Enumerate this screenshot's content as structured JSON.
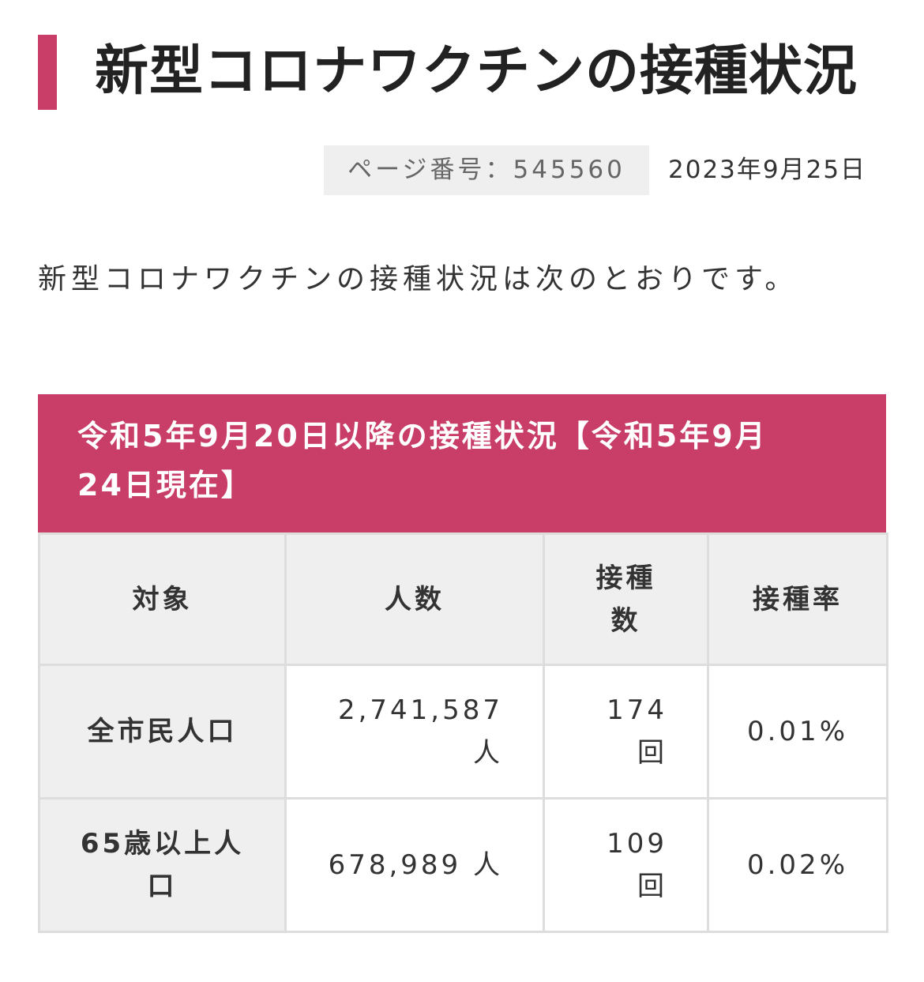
{
  "header": {
    "title": "新型コロナワクチンの接種状況",
    "page_number": "ページ番号：545560",
    "date": "2023年9月25日"
  },
  "intro": "新型コロナワクチンの接種状況は次のとおりです。",
  "table": {
    "caption_line1": "令和5年9月20日以降の接種状況【令和5年9月",
    "caption_line2": "24日現在】",
    "headers": {
      "target": "対象",
      "people": "人数",
      "doses_line1": "接種",
      "doses_line2": "数",
      "rate": "接種率"
    },
    "rows": [
      {
        "target_line1": "全市民人口",
        "target_line2": "",
        "people_line1": "2,741,587",
        "people_line2": "人",
        "doses_line1": "174",
        "doses_line2": "回",
        "rate": "0.01%"
      },
      {
        "target_line1": "65歳以上人",
        "target_line2": "口",
        "people_line1": "678,989 人",
        "people_line2": "",
        "doses_line1": "109",
        "doses_line2": "回",
        "rate": "0.02%"
      }
    ]
  },
  "colors": {
    "accent": "#c83e68",
    "header_bg": "#efefef",
    "border": "#dddddd"
  }
}
